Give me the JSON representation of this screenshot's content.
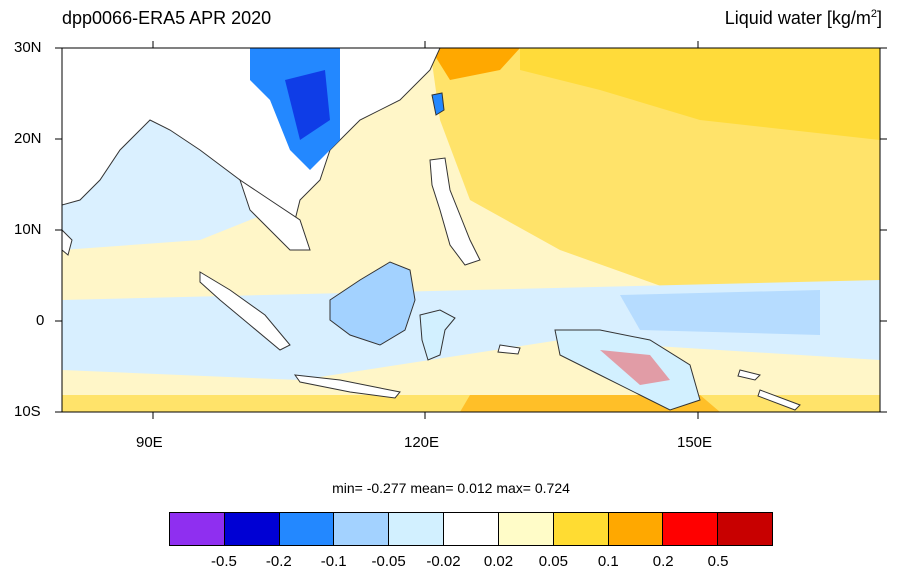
{
  "title": {
    "left": "dpp0066-ERA5 APR 2020",
    "right_text": "Liquid water  [kg/m",
    "right_sup": "2",
    "right_close": "]"
  },
  "lat_labels": [
    "30N",
    "20N",
    "10N",
    "0",
    "10S"
  ],
  "lon_labels": [
    "90E",
    "120E",
    "150E"
  ],
  "stats": {
    "min_label": "min=",
    "min": "-0.277",
    "mean_label": "mean=",
    "mean": "0.012",
    "max_label": "max=",
    "max": "0.724"
  },
  "colorbar": {
    "colors": [
      "#8f2ff0",
      "#0000d4",
      "#2388ff",
      "#a3d2ff",
      "#d2f0ff",
      "#ffffff",
      "#fffcc8",
      "#ffdc32",
      "#ffa800",
      "#ff0000",
      "#c80000"
    ],
    "ticks": [
      "-0.5",
      "-0.2",
      "-0.1",
      "-0.05",
      "-0.02",
      "0.02",
      "0.05",
      "0.1",
      "0.2",
      "0.5"
    ]
  },
  "map": {
    "lon_range": [
      80,
      170
    ],
    "lat_range": [
      -10,
      30
    ],
    "colors": {
      "ocean_base": "#fff0b0",
      "land": "#ffffff",
      "coast": "#333333"
    }
  }
}
